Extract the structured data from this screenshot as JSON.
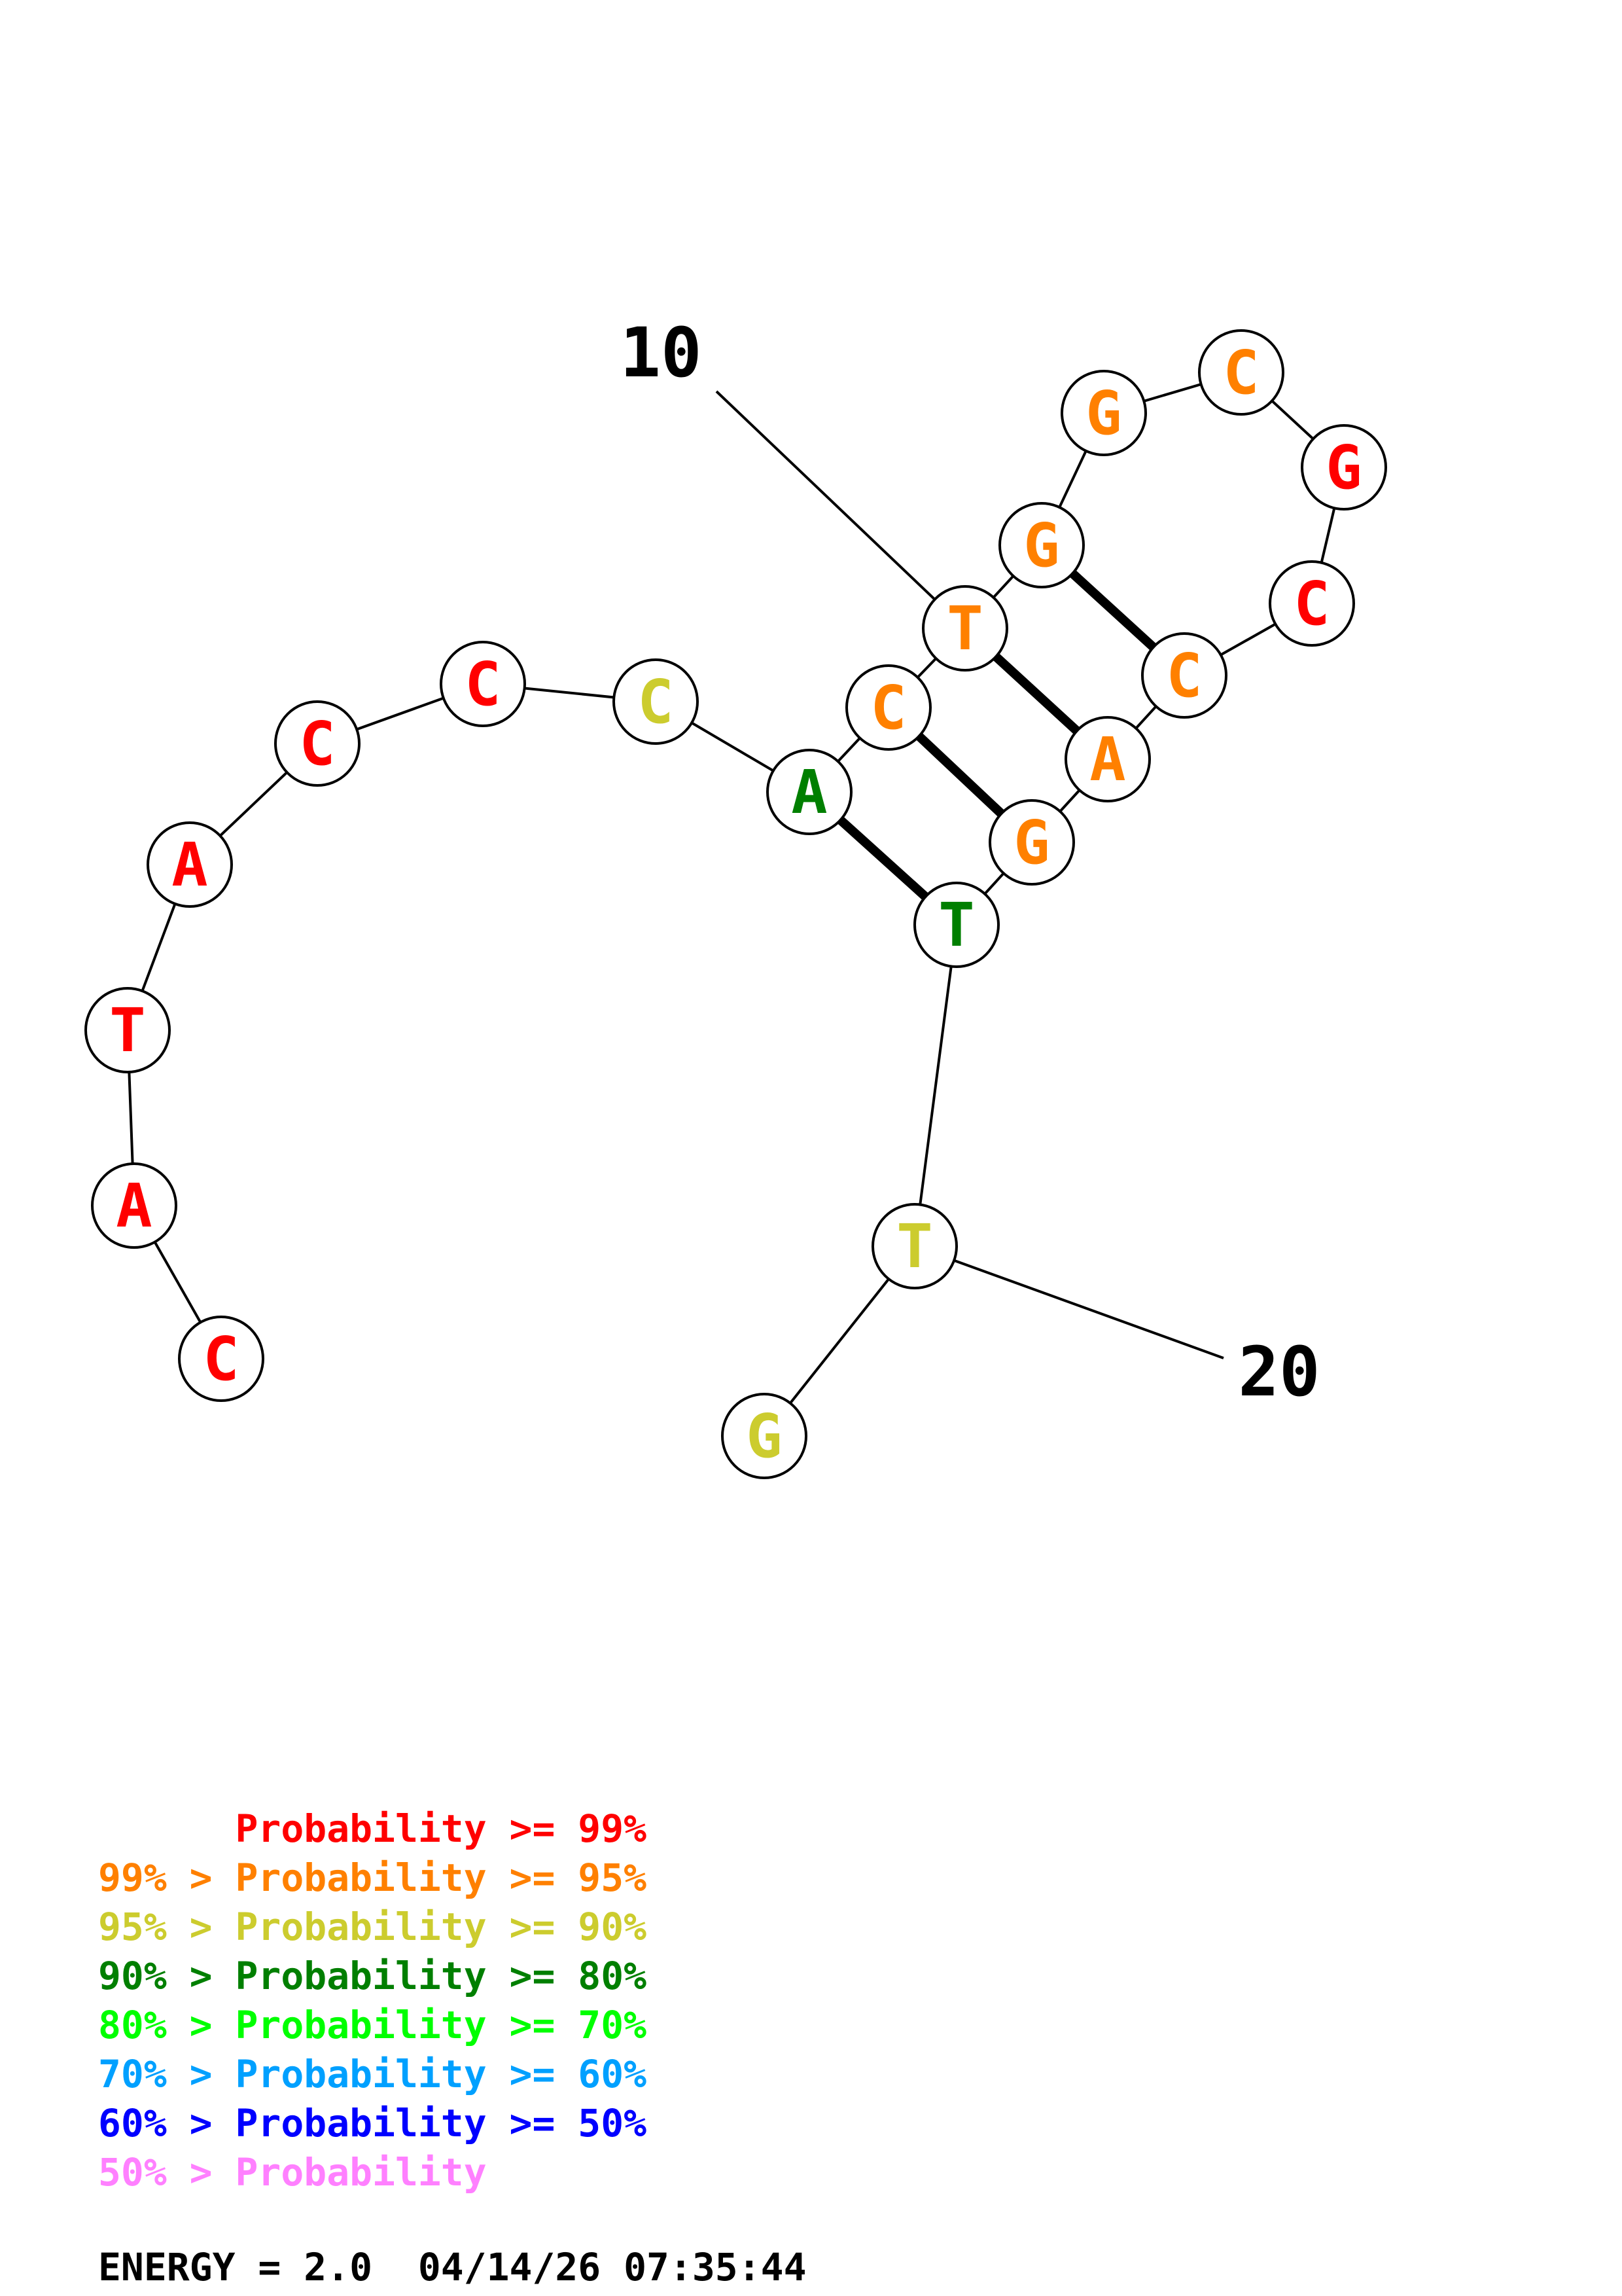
{
  "structure": {
    "nucleotides": [
      {
        "base": "C",
        "level": "p99"
      },
      {
        "base": "A",
        "level": "p99"
      },
      {
        "base": "T",
        "level": "p99"
      },
      {
        "base": "A",
        "level": "p99"
      },
      {
        "base": "C",
        "level": "p99"
      },
      {
        "base": "C",
        "level": "p99"
      },
      {
        "base": "C",
        "level": "p90"
      },
      {
        "base": "A",
        "level": "p80"
      },
      {
        "base": "C",
        "level": "p95"
      },
      {
        "base": "T",
        "level": "p95"
      },
      {
        "base": "G",
        "level": "p95"
      },
      {
        "base": "G",
        "level": "p95"
      },
      {
        "base": "C",
        "level": "p95"
      },
      {
        "base": "G",
        "level": "p99"
      },
      {
        "base": "C",
        "level": "p99"
      },
      {
        "base": "C",
        "level": "p95"
      },
      {
        "base": "A",
        "level": "p95"
      },
      {
        "base": "G",
        "level": "p95"
      },
      {
        "base": "T",
        "level": "p80"
      },
      {
        "base": "T",
        "level": "p90"
      },
      {
        "base": "G",
        "level": "p90"
      }
    ],
    "pairs": [
      [
        8,
        19
      ],
      [
        9,
        18
      ],
      [
        10,
        17
      ],
      [
        11,
        16
      ]
    ],
    "index_labels": [
      {
        "text": "10",
        "position": 10
      },
      {
        "text": "20",
        "position": 20
      }
    ]
  },
  "colors": {
    "p99": "#ff0000",
    "p95": "#ff8000",
    "p90": "#cccc2e",
    "p80": "#007f00",
    "p70": "#00ff00",
    "p60": "#00a0ff",
    "p50": "#0000ff",
    "plow": "#ff80ff"
  },
  "legend": [
    {
      "text": "      Probability >= 99%",
      "level": "p99"
    },
    {
      "text": "99% > Probability >= 95%",
      "level": "p95"
    },
    {
      "text": "95% > Probability >= 90%",
      "level": "p90"
    },
    {
      "text": "90% > Probability >= 80%",
      "level": "p80"
    },
    {
      "text": "80% > Probability >= 70%",
      "level": "p70"
    },
    {
      "text": "70% > Probability >= 60%",
      "level": "p60"
    },
    {
      "text": "60% > Probability >= 50%",
      "level": "p50"
    },
    {
      "text": "50% > Probability",
      "level": "plow"
    }
  ],
  "footer": {
    "energy": "ENERGY = 2.0  04/14/26 07:35:44"
  }
}
